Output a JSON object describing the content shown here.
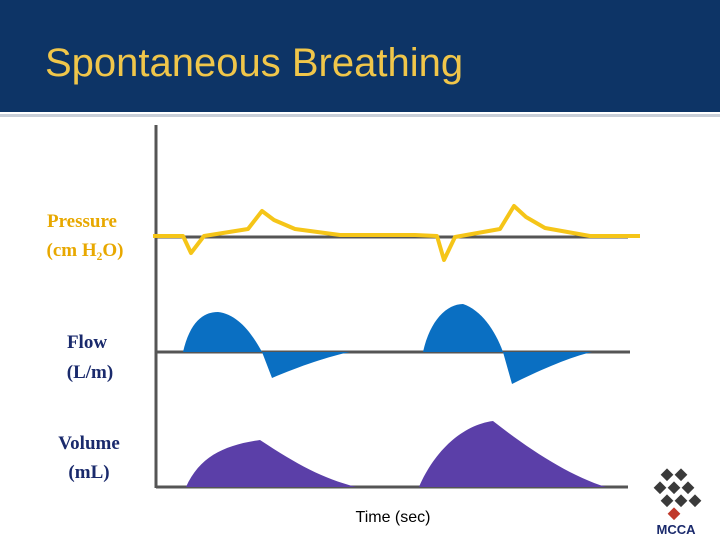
{
  "header": {
    "title": "Spontaneous Breathing"
  },
  "traces": [
    {
      "lines": [
        "Pressure",
        "(cm H₂O)"
      ]
    },
    {
      "lines": [
        "Flow",
        "(L/m)"
      ]
    },
    {
      "lines": [
        "Volume",
        "(mL)"
      ]
    }
  ],
  "x_axis_label": "Time (sec)",
  "logo": "MCCA"
}
